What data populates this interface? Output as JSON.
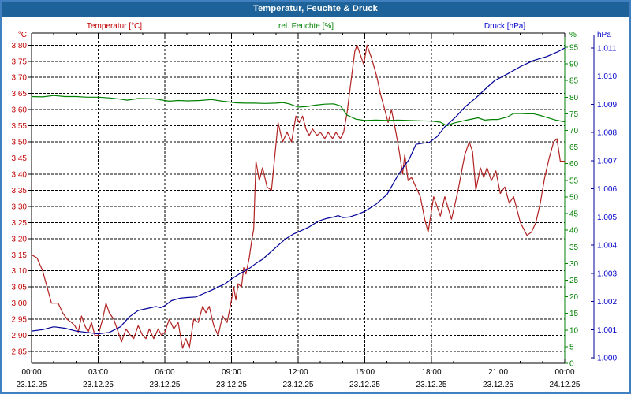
{
  "window": {
    "title": "Temperatur, Feuchte & Druck"
  },
  "legend": {
    "temperature": "Temperatur [°C]",
    "humidity": "rel. Feuchte [%]",
    "pressure": "Druck [hPa]"
  },
  "axis_headers": {
    "temperature": "°C",
    "humidity": "%",
    "pressure": "hPa"
  },
  "colors": {
    "temperature_text": "#c00000",
    "temperature_line": "#b22222",
    "humidity_text": "#008000",
    "humidity_line": "#008000",
    "pressure_text": "#0000cc",
    "pressure_line": "#000099",
    "grid": "#000000",
    "axis": "#000000",
    "title_bar_bg": "#1d6399",
    "window_border": "#4080c0",
    "background": "#ffffff"
  },
  "chart_data": {
    "type": "line",
    "title": "Temperatur, Feuchte & Druck",
    "grid": "dashed",
    "legend_position": "top",
    "x_axis": {
      "hours_span": 24,
      "minor_tick_hours": 1,
      "tick_hours": [
        0,
        3,
        6,
        9,
        12,
        15,
        18,
        21,
        24
      ],
      "tick_times": [
        "00:00",
        "03:00",
        "06:00",
        "09:00",
        "12:00",
        "15:00",
        "18:00",
        "21:00",
        "00:00"
      ],
      "tick_dates": [
        "23.12.25",
        "23.12.25",
        "23.12.25",
        "23.12.25",
        "23.12.25",
        "23.12.25",
        "23.12.25",
        "23.12.25",
        "24.12.25"
      ]
    },
    "y_axes": {
      "temperature": {
        "unit": "°C",
        "min": 2.85,
        "max": 3.8,
        "tick_step": 0.05,
        "tick_values": [
          3.8,
          3.75,
          3.7,
          3.65,
          3.6,
          3.55,
          3.5,
          3.45,
          3.4,
          3.35,
          3.3,
          3.25,
          3.2,
          3.15,
          3.1,
          3.05,
          3.0,
          2.95,
          2.9,
          2.85
        ],
        "tick_labels": [
          "3,80",
          "3,75",
          "3,70",
          "3,65",
          "3,60",
          "3,55",
          "3,50",
          "3,45",
          "3,40",
          "3,35",
          "3,30",
          "3,25",
          "3,20",
          "3,15",
          "3,10",
          "3,05",
          "3,00",
          "2,95",
          "2,90",
          "2,85"
        ]
      },
      "humidity": {
        "unit": "%",
        "min": 0,
        "max": 95,
        "tick_step": 5,
        "tick_values": [
          95,
          90,
          85,
          80,
          75,
          70,
          65,
          60,
          55,
          50,
          45,
          40,
          35,
          30,
          25,
          20,
          15,
          10,
          5,
          0
        ],
        "tick_labels": [
          "95",
          "90",
          "85",
          "80",
          "75",
          "70",
          "65",
          "60",
          "55",
          "50",
          "45",
          "40",
          "35",
          "30",
          "25",
          "20",
          "15",
          "10",
          "5",
          "0"
        ]
      },
      "pressure": {
        "unit": "hPa",
        "min": 1000,
        "max": 1011,
        "tick_step": 1,
        "tick_values": [
          1011,
          1010,
          1009,
          1008,
          1007,
          1006,
          1005,
          1004,
          1003,
          1002,
          1001,
          1000
        ],
        "tick_labels": [
          "1.011",
          "1.010",
          "1.009",
          "1.008",
          "1.007",
          "1.006",
          "1.005",
          "1.004",
          "1.003",
          "1.002",
          "1.001",
          "1.000"
        ]
      }
    },
    "series": [
      {
        "name": "Temperatur [°C]",
        "axis": "temperature",
        "color": "#b22222",
        "points": [
          [
            0,
            3.15
          ],
          [
            0.25,
            3.14
          ],
          [
            0.5,
            3.1
          ],
          [
            0.7,
            3.05
          ],
          [
            0.9,
            3.0
          ],
          [
            1.2,
            3.0
          ],
          [
            1.4,
            2.97
          ],
          [
            1.6,
            2.95
          ],
          [
            1.8,
            2.94
          ],
          [
            1.95,
            2.93
          ],
          [
            2.1,
            2.91
          ],
          [
            2.25,
            2.96
          ],
          [
            2.4,
            2.93
          ],
          [
            2.55,
            2.91
          ],
          [
            2.7,
            2.94
          ],
          [
            2.85,
            2.9
          ],
          [
            3.0,
            2.9
          ],
          [
            3.2,
            2.95
          ],
          [
            3.35,
            3.0
          ],
          [
            3.5,
            2.97
          ],
          [
            3.7,
            2.95
          ],
          [
            3.9,
            2.91
          ],
          [
            4.05,
            2.88
          ],
          [
            4.25,
            2.92
          ],
          [
            4.45,
            2.9
          ],
          [
            4.6,
            2.89
          ],
          [
            4.8,
            2.93
          ],
          [
            5.0,
            2.9
          ],
          [
            5.15,
            2.89
          ],
          [
            5.3,
            2.92
          ],
          [
            5.5,
            2.89
          ],
          [
            5.7,
            2.92
          ],
          [
            5.85,
            2.9
          ],
          [
            6.0,
            2.91
          ],
          [
            6.2,
            2.95
          ],
          [
            6.4,
            2.92
          ],
          [
            6.6,
            2.94
          ],
          [
            6.8,
            2.86
          ],
          [
            6.95,
            2.89
          ],
          [
            7.1,
            2.86
          ],
          [
            7.3,
            2.95
          ],
          [
            7.5,
            2.94
          ],
          [
            7.7,
            2.99
          ],
          [
            7.85,
            2.97
          ],
          [
            8.0,
            2.99
          ],
          [
            8.2,
            2.93
          ],
          [
            8.4,
            2.9
          ],
          [
            8.6,
            2.96
          ],
          [
            8.8,
            2.94
          ],
          [
            9.0,
            3.01
          ],
          [
            9.1,
            3.05
          ],
          [
            9.2,
            3.01
          ],
          [
            9.3,
            3.06
          ],
          [
            9.45,
            3.05
          ],
          [
            9.55,
            3.11
          ],
          [
            9.65,
            3.09
          ],
          [
            9.8,
            3.14
          ],
          [
            9.9,
            3.19
          ],
          [
            10.0,
            3.23
          ],
          [
            10.1,
            3.44
          ],
          [
            10.25,
            3.38
          ],
          [
            10.4,
            3.42
          ],
          [
            10.6,
            3.36
          ],
          [
            10.8,
            3.35
          ],
          [
            11.1,
            3.56
          ],
          [
            11.3,
            3.5
          ],
          [
            11.5,
            3.53
          ],
          [
            11.7,
            3.5
          ],
          [
            11.9,
            3.58
          ],
          [
            12.05,
            3.56
          ],
          [
            12.2,
            3.58
          ],
          [
            12.35,
            3.54
          ],
          [
            12.5,
            3.52
          ],
          [
            12.65,
            3.54
          ],
          [
            12.85,
            3.52
          ],
          [
            13.0,
            3.53
          ],
          [
            13.2,
            3.51
          ],
          [
            13.35,
            3.53
          ],
          [
            13.55,
            3.51
          ],
          [
            13.7,
            3.53
          ],
          [
            13.9,
            3.51
          ],
          [
            14.05,
            3.53
          ],
          [
            14.2,
            3.59
          ],
          [
            14.4,
            3.7
          ],
          [
            14.55,
            3.78
          ],
          [
            14.65,
            3.8
          ],
          [
            14.8,
            3.77
          ],
          [
            14.95,
            3.74
          ],
          [
            15.1,
            3.8
          ],
          [
            15.3,
            3.76
          ],
          [
            15.55,
            3.7
          ],
          [
            15.7,
            3.65
          ],
          [
            15.9,
            3.6
          ],
          [
            16.05,
            3.56
          ],
          [
            16.2,
            3.6
          ],
          [
            16.4,
            3.53
          ],
          [
            16.55,
            3.47
          ],
          [
            16.7,
            3.4
          ],
          [
            16.8,
            3.46
          ],
          [
            16.95,
            3.38
          ],
          [
            17.1,
            3.39
          ],
          [
            17.3,
            3.36
          ],
          [
            17.5,
            3.33
          ],
          [
            17.7,
            3.26
          ],
          [
            17.85,
            3.22
          ],
          [
            18.1,
            3.33
          ],
          [
            18.4,
            3.27
          ],
          [
            18.6,
            3.33
          ],
          [
            18.9,
            3.26
          ],
          [
            19.2,
            3.35
          ],
          [
            19.5,
            3.46
          ],
          [
            19.7,
            3.5
          ],
          [
            19.85,
            3.47
          ],
          [
            20.0,
            3.35
          ],
          [
            20.2,
            3.42
          ],
          [
            20.35,
            3.39
          ],
          [
            20.5,
            3.42
          ],
          [
            20.7,
            3.38
          ],
          [
            20.9,
            3.41
          ],
          [
            21.1,
            3.34
          ],
          [
            21.3,
            3.36
          ],
          [
            21.5,
            3.31
          ],
          [
            21.7,
            3.33
          ],
          [
            22.0,
            3.25
          ],
          [
            22.3,
            3.21
          ],
          [
            22.5,
            3.22
          ],
          [
            22.7,
            3.25
          ],
          [
            22.9,
            3.31
          ],
          [
            23.1,
            3.39
          ],
          [
            23.3,
            3.45
          ],
          [
            23.5,
            3.5
          ],
          [
            23.65,
            3.51
          ],
          [
            23.8,
            3.44
          ],
          [
            24,
            3.44
          ]
        ]
      },
      {
        "name": "rel. Feuchte [%]",
        "axis": "humidity",
        "color": "#008000",
        "points": [
          [
            0,
            80.2
          ],
          [
            0.5,
            80.1
          ],
          [
            1,
            80.5
          ],
          [
            1.5,
            80.2
          ],
          [
            2,
            80.2
          ],
          [
            2.5,
            80.0
          ],
          [
            3,
            80.0
          ],
          [
            3.5,
            79.8
          ],
          [
            4,
            79.4
          ],
          [
            4.3,
            79.1
          ],
          [
            4.8,
            79.6
          ],
          [
            5.5,
            79.5
          ],
          [
            6.2,
            78.8
          ],
          [
            6.6,
            79.0
          ],
          [
            7,
            78.9
          ],
          [
            7.6,
            79.0
          ],
          [
            8.1,
            79.3
          ],
          [
            8.6,
            78.8
          ],
          [
            9.2,
            78.3
          ],
          [
            9.6,
            78.2
          ],
          [
            10,
            78.2
          ],
          [
            10.5,
            78.1
          ],
          [
            11,
            78.2
          ],
          [
            11.3,
            78.4
          ],
          [
            11.6,
            78.0
          ],
          [
            12,
            77.0
          ],
          [
            12.4,
            77.2
          ],
          [
            12.8,
            77.6
          ],
          [
            13.2,
            77.9
          ],
          [
            13.6,
            78.0
          ],
          [
            13.9,
            77.4
          ],
          [
            14.2,
            74.6
          ],
          [
            14.6,
            73.4
          ],
          [
            15,
            73.0
          ],
          [
            15.5,
            73.1
          ],
          [
            16,
            73.0
          ],
          [
            16.5,
            73.1
          ],
          [
            17,
            73.0
          ],
          [
            17.5,
            72.9
          ],
          [
            18,
            72.8
          ],
          [
            18.4,
            72.5
          ],
          [
            18.7,
            71.4
          ],
          [
            19,
            72.2
          ],
          [
            19.5,
            73.0
          ],
          [
            20.1,
            73.8
          ],
          [
            20.4,
            73.1
          ],
          [
            20.7,
            73.3
          ],
          [
            21,
            73.3
          ],
          [
            21.4,
            74.0
          ],
          [
            21.7,
            75.1
          ],
          [
            22,
            75.1
          ],
          [
            22.3,
            75.0
          ],
          [
            22.6,
            75.0
          ],
          [
            22.9,
            74.5
          ],
          [
            23.2,
            73.9
          ],
          [
            23.6,
            73.1
          ],
          [
            24,
            72.6
          ]
        ]
      },
      {
        "name": "Druck [hPa]",
        "axis": "pressure",
        "color": "#000099",
        "points": [
          [
            0,
            1000.95
          ],
          [
            0.5,
            1001.0
          ],
          [
            1,
            1001.1
          ],
          [
            1.5,
            1001.05
          ],
          [
            2,
            1000.95
          ],
          [
            2.5,
            1000.9
          ],
          [
            3,
            1000.85
          ],
          [
            3.5,
            1000.9
          ],
          [
            4,
            1001.1
          ],
          [
            4.4,
            1001.45
          ],
          [
            4.8,
            1001.68
          ],
          [
            5.2,
            1001.75
          ],
          [
            5.6,
            1001.82
          ],
          [
            5.8,
            1001.78
          ],
          [
            6,
            1001.85
          ],
          [
            6.3,
            1002.03
          ],
          [
            6.7,
            1002.12
          ],
          [
            7,
            1002.14
          ],
          [
            7.4,
            1002.16
          ],
          [
            7.75,
            1002.28
          ],
          [
            8.1,
            1002.4
          ],
          [
            8.5,
            1002.55
          ],
          [
            8.7,
            1002.62
          ],
          [
            9,
            1002.8
          ],
          [
            9.4,
            1003.0
          ],
          [
            9.8,
            1003.17
          ],
          [
            10.1,
            1003.35
          ],
          [
            10.4,
            1003.5
          ],
          [
            10.9,
            1003.85
          ],
          [
            11.4,
            1004.2
          ],
          [
            11.8,
            1004.4
          ],
          [
            12.1,
            1004.5
          ],
          [
            12.5,
            1004.65
          ],
          [
            12.9,
            1004.85
          ],
          [
            13.3,
            1004.95
          ],
          [
            13.6,
            1005.0
          ],
          [
            13.8,
            1005.05
          ],
          [
            14.0,
            1004.98
          ],
          [
            14.3,
            1005.0
          ],
          [
            14.7,
            1005.1
          ],
          [
            15,
            1005.2
          ],
          [
            15.5,
            1005.45
          ],
          [
            16,
            1005.8
          ],
          [
            16.5,
            1006.5
          ],
          [
            17,
            1007.05
          ],
          [
            17.3,
            1007.58
          ],
          [
            17.6,
            1007.62
          ],
          [
            17.9,
            1007.65
          ],
          [
            18.25,
            1007.85
          ],
          [
            18.6,
            1008.2
          ],
          [
            19.1,
            1008.56
          ],
          [
            19.5,
            1008.9
          ],
          [
            20,
            1009.23
          ],
          [
            20.5,
            1009.6
          ],
          [
            20.85,
            1009.85
          ],
          [
            21.4,
            1010.07
          ],
          [
            22,
            1010.34
          ],
          [
            22.6,
            1010.56
          ],
          [
            23.2,
            1010.7
          ],
          [
            23.7,
            1010.87
          ],
          [
            24,
            1011.0
          ]
        ]
      }
    ]
  }
}
